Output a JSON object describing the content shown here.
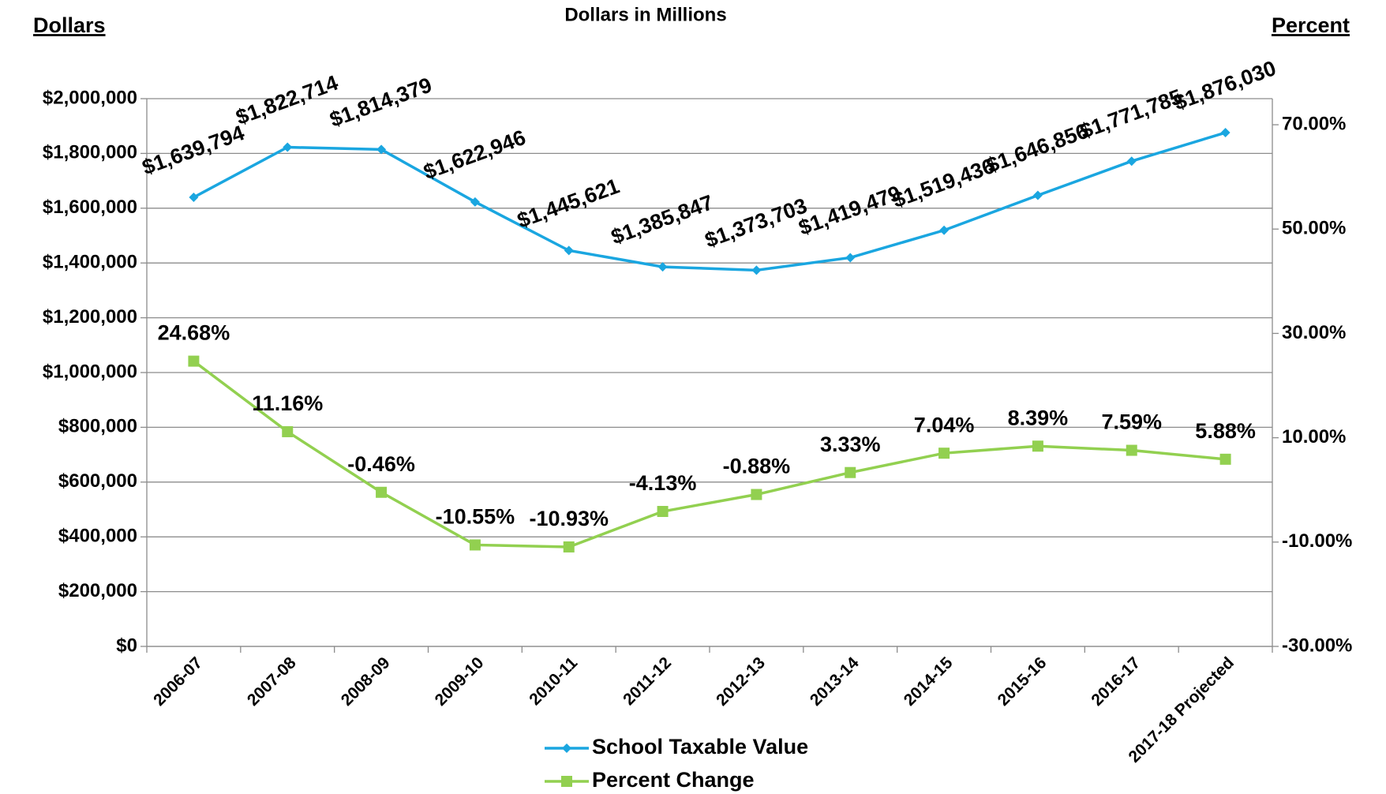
{
  "chart_data": {
    "type": "line",
    "title": "Dollars in Millions",
    "y_label": "Dollars",
    "y2_label": "Percent",
    "categories": [
      "2006-07",
      "2007-08",
      "2008-09",
      "2009-10",
      "2010-11",
      "2011-12",
      "2012-13",
      "2013-14",
      "2014-15",
      "2015-16",
      "2016-17",
      "2017-18 Projected"
    ],
    "series": [
      {
        "name": "School Taxable Value",
        "color": "#1aa6e0",
        "marker": "diamond",
        "values": [
          1639794,
          1822714,
          1814379,
          1622946,
          1445621,
          1385847,
          1373703,
          1419479,
          1519436,
          1646856,
          1771785,
          1876030
        ],
        "value_labels": [
          "$1,639,794",
          "$1,822,714",
          "$1,814,379",
          "$1,622,946",
          "$1,445,621",
          "$1,385,847",
          "$1,373,703",
          "$1,419,479",
          "$1,519,436",
          "$1,646,856",
          "$1,771,785",
          "$1,876,030"
        ]
      },
      {
        "name": "Percent Change",
        "color": "#92d050",
        "marker": "square",
        "axis": "y2",
        "values": [
          24.68,
          11.16,
          -0.46,
          -10.55,
          -10.93,
          -4.13,
          -0.88,
          3.33,
          7.04,
          8.39,
          7.59,
          5.88
        ],
        "value_labels": [
          "24.68%",
          "11.16%",
          "-0.46%",
          "-10.55%",
          "-10.93%",
          "-4.13%",
          "-0.88%",
          "3.33%",
          "7.04%",
          "8.39%",
          "7.59%",
          "5.88%"
        ]
      }
    ],
    "ylim": [
      0,
      2000000
    ],
    "yticks": [
      {
        "value": 0,
        "label": "$0"
      },
      {
        "value": 200000,
        "label": "$200,000"
      },
      {
        "value": 400000,
        "label": "$400,000"
      },
      {
        "value": 600000,
        "label": "$600,000"
      },
      {
        "value": 800000,
        "label": "$800,000"
      },
      {
        "value": 1000000,
        "label": "$1,000,000"
      },
      {
        "value": 1200000,
        "label": "$1,200,000"
      },
      {
        "value": 1400000,
        "label": "$1,400,000"
      },
      {
        "value": 1600000,
        "label": "$1,600,000"
      },
      {
        "value": 1800000,
        "label": "$1,800,000"
      },
      {
        "value": 2000000,
        "label": "$2,000,000"
      }
    ],
    "y2lim": [
      -30,
      75
    ],
    "y2ticks": [
      {
        "value": -30,
        "label": "-30.00%"
      },
      {
        "value": -10,
        "label": "-10.00%"
      },
      {
        "value": 10,
        "label": "10.00%"
      },
      {
        "value": 30,
        "label": "30.00%"
      },
      {
        "value": 50,
        "label": "50.00%"
      },
      {
        "value": 70,
        "label": "70.00%"
      }
    ],
    "grid": true,
    "legend": "bottom"
  }
}
